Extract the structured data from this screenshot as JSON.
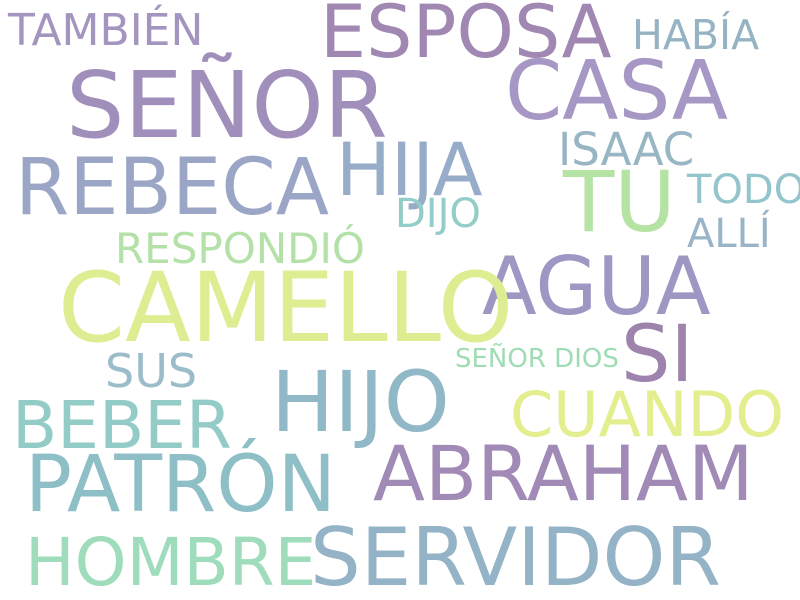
{
  "words": [
    {
      "key": "tambien",
      "text": "TAMBIÉN",
      "color": "#a395bf"
    },
    {
      "key": "esposa",
      "text": "ESPOSA",
      "color": "#a088b3"
    },
    {
      "key": "habia",
      "text": "HABÍA",
      "color": "#95b3c3"
    },
    {
      "key": "senor",
      "text": "SEÑOR",
      "color": "#a08ebb"
    },
    {
      "key": "casa",
      "text": "CASA",
      "color": "#a697c4"
    },
    {
      "key": "isaac",
      "text": "ISAAC",
      "color": "#98b5c4"
    },
    {
      "key": "rebeca",
      "text": "REBECA",
      "color": "#9ba6c6"
    },
    {
      "key": "hija",
      "text": "HIJA",
      "color": "#97acc8"
    },
    {
      "key": "tu",
      "text": "TU",
      "color": "#b5e3a3"
    },
    {
      "key": "todo",
      "text": "TODO",
      "color": "#94c5cc"
    },
    {
      "key": "dijo",
      "text": "DIJO",
      "color": "#93cdc7"
    },
    {
      "key": "alli",
      "text": "ALLÍ",
      "color": "#99b4c6"
    },
    {
      "key": "respondio",
      "text": "RESPONDIÓ",
      "color": "#b3e1a8"
    },
    {
      "key": "agua",
      "text": "AGUA",
      "color": "#9c97c3"
    },
    {
      "key": "camello",
      "text": "CAMELLO",
      "color": "#ddee92"
    },
    {
      "key": "si",
      "text": "SI",
      "color": "#9e83ad"
    },
    {
      "key": "senor_dios",
      "text": "SEÑOR DIOS",
      "color": "#9fdcb3"
    },
    {
      "key": "sus",
      "text": "SUS",
      "color": "#9bbcc9"
    },
    {
      "key": "hijo",
      "text": "HIJO",
      "color": "#90b8c6"
    },
    {
      "key": "beber",
      "text": "BEBER",
      "color": "#93cbc6"
    },
    {
      "key": "cuando",
      "text": "CUANDO",
      "color": "#e3ef8e"
    },
    {
      "key": "patron",
      "text": "PATRÓN",
      "color": "#8fbfc6"
    },
    {
      "key": "abraham",
      "text": "ABRAHAM",
      "color": "#a18ab5"
    },
    {
      "key": "hombre",
      "text": "HOMBRE",
      "color": "#9edcbb"
    },
    {
      "key": "servidor",
      "text": "SERVIDOR",
      "color": "#94b3c6"
    }
  ]
}
